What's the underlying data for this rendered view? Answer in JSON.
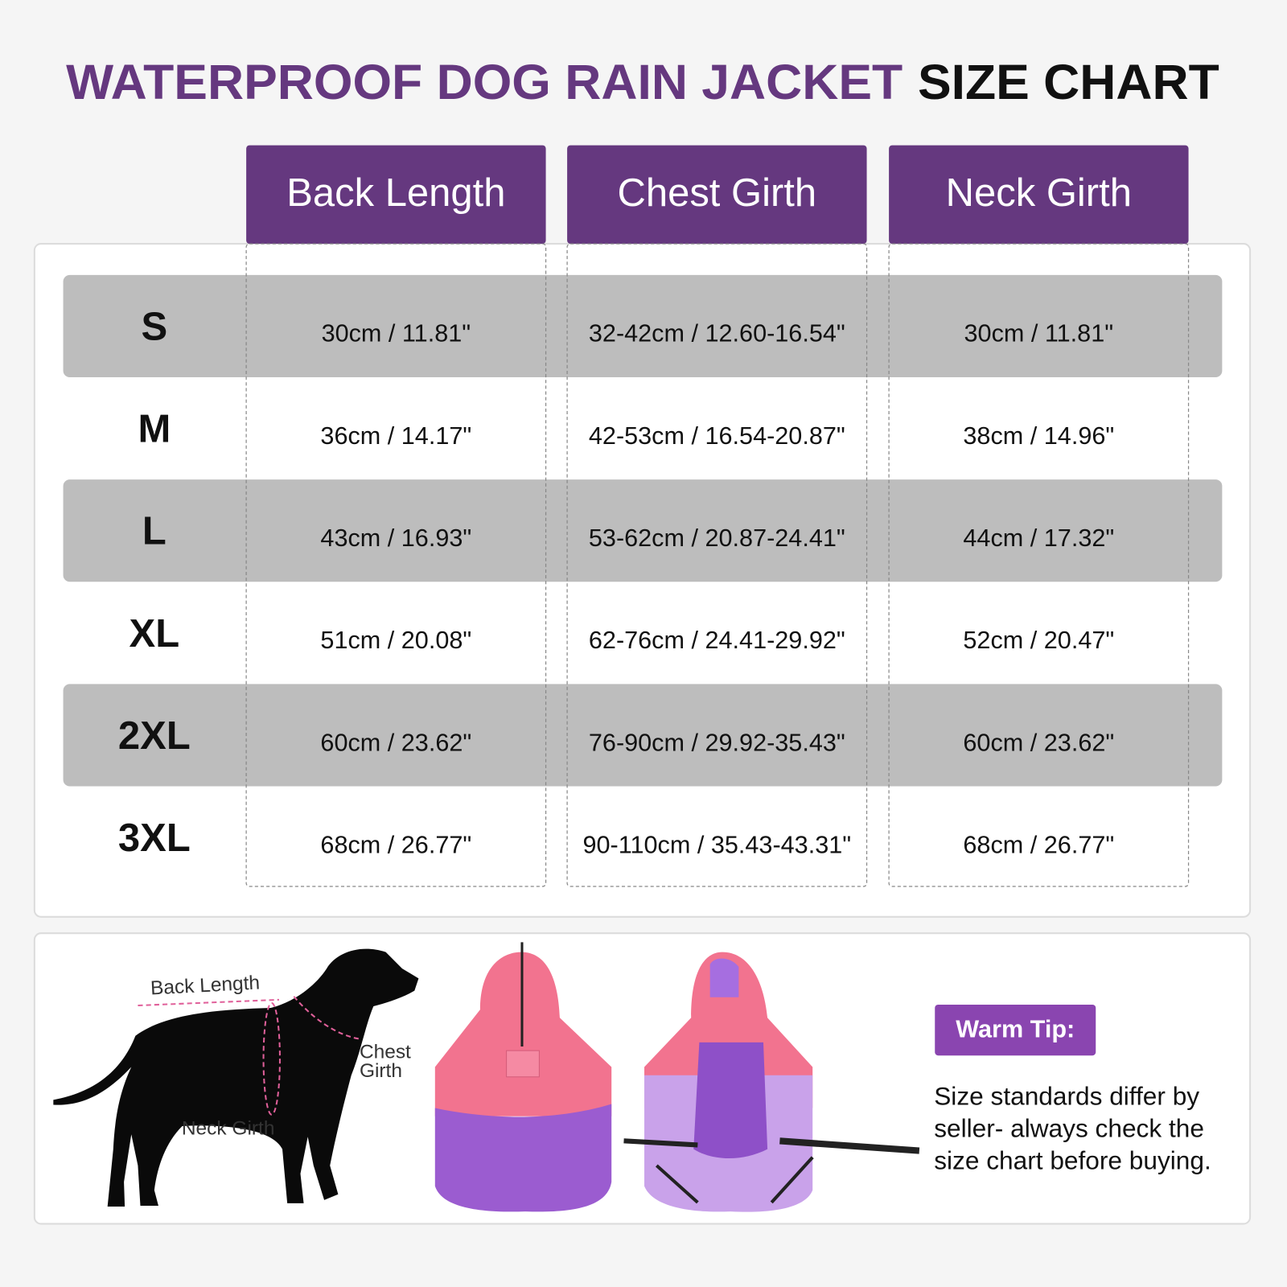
{
  "header": {
    "title_highlight": "WATERPROOF DOG RAIN JACKET",
    "title_rest": "SIZE CHART"
  },
  "table": {
    "columns": [
      "Back Length",
      "Chest Girth",
      "Neck Girth"
    ],
    "rows": [
      {
        "size": "S",
        "cells": [
          "30cm / 11.81\"",
          "32-42cm / 12.60-16.54\"",
          "30cm / 11.81\""
        ]
      },
      {
        "size": "M",
        "cells": [
          "36cm / 14.17\"",
          "42-53cm / 16.54-20.87\"",
          "38cm / 14.96\""
        ]
      },
      {
        "size": "L",
        "cells": [
          "43cm / 16.93\"",
          "53-62cm / 20.87-24.41\"",
          "44cm / 17.32\""
        ]
      },
      {
        "size": "XL",
        "cells": [
          "51cm / 20.08\"",
          "62-76cm / 24.41-29.92\"",
          "52cm / 20.47\""
        ]
      },
      {
        "size": "2XL",
        "cells": [
          "60cm / 23.62\"",
          "76-90cm / 29.92-35.43\"",
          "60cm / 23.62\""
        ]
      },
      {
        "size": "3XL",
        "cells": [
          "68cm / 26.77\"",
          "90-110cm / 35.43-43.31\"",
          "68cm / 26.77\""
        ]
      }
    ]
  },
  "diagram": {
    "back_length": "Back Length",
    "chest_girth": [
      "Chest",
      "Girth"
    ],
    "neck_girth": "Neck Girth"
  },
  "tip": {
    "title": "Warm Tip:",
    "lines": [
      "Size standards differ by",
      "seller- always check the",
      "size chart before buying."
    ]
  }
}
